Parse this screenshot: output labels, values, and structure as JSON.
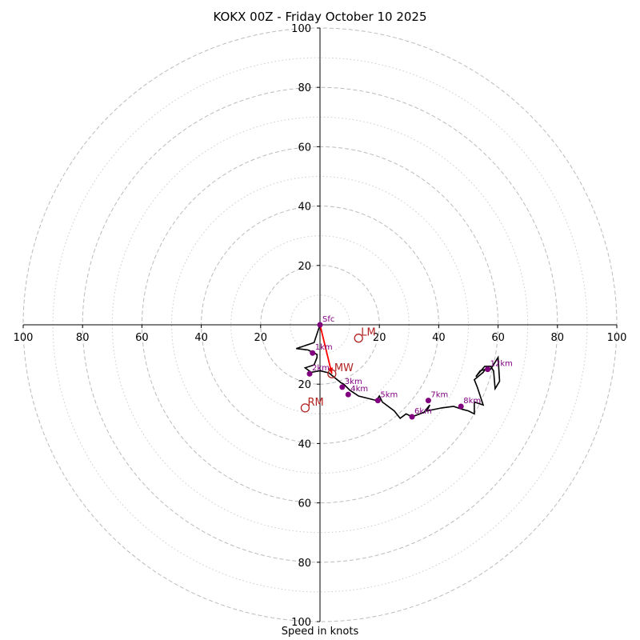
{
  "chart_data": {
    "type": "hodograph",
    "title": "KOKX 00Z - Friday October 10 2025",
    "xlabel": "Speed in knots",
    "units": "knots",
    "range": 100,
    "rings_major": [
      20,
      40,
      60,
      80,
      100
    ],
    "rings_minor": [
      10,
      30,
      50,
      70,
      90
    ],
    "tick_labels": {
      "left": [
        "100",
        "80",
        "60",
        "40",
        "20"
      ],
      "right": [
        "20",
        "40",
        "60",
        "80",
        "100"
      ],
      "up": [
        "20",
        "40",
        "60",
        "80",
        "100"
      ],
      "down": [
        "20",
        "40",
        "60",
        "80",
        "100"
      ]
    },
    "colors": {
      "trace": "#000000",
      "height_marker": "#800080",
      "motion": "#b22222",
      "mean_wind_vector": "#ff0000",
      "ring": "#bbbbbb"
    },
    "trace": [
      [
        0,
        0
      ],
      [
        -2,
        -6
      ],
      [
        -8,
        -8
      ],
      [
        -4,
        -8.5
      ],
      [
        -1,
        -10
      ],
      [
        -1,
        -11
      ],
      [
        -2,
        -13.5
      ],
      [
        -5,
        -14.5
      ],
      [
        -3,
        -16
      ],
      [
        0,
        -15.5
      ],
      [
        3,
        -16.2
      ],
      [
        7,
        -19.5
      ],
      [
        8,
        -20
      ],
      [
        10,
        -22
      ],
      [
        13,
        -24
      ],
      [
        19,
        -25.5
      ],
      [
        20,
        -24
      ],
      [
        21,
        -26
      ],
      [
        25,
        -29
      ],
      [
        27,
        -31.5
      ],
      [
        29,
        -30
      ],
      [
        31,
        -31
      ],
      [
        35,
        -29.5
      ],
      [
        37,
        -27
      ],
      [
        36,
        -29
      ],
      [
        41,
        -28
      ],
      [
        45,
        -27.5
      ],
      [
        48,
        -28.5
      ],
      [
        50,
        -29
      ],
      [
        52,
        -30
      ],
      [
        52,
        -26
      ],
      [
        55,
        -27
      ],
      [
        53,
        -21
      ],
      [
        52,
        -18.5
      ],
      [
        55,
        -16
      ],
      [
        56,
        -14.5
      ],
      [
        57.5,
        -15
      ],
      [
        60,
        -11
      ],
      [
        60.5,
        -19
      ],
      [
        59,
        -21.5
      ],
      [
        58.5,
        -15.5
      ],
      [
        57.5,
        -14
      ],
      [
        55.5,
        -14
      ],
      [
        52.5,
        -17.5
      ],
      [
        54,
        -15.5
      ],
      [
        56.5,
        -14.8
      ]
    ],
    "height_markers": [
      {
        "label": "Sfc",
        "u": 0,
        "v": 0
      },
      {
        "label": "1km",
        "u": -2.5,
        "v": -9.5
      },
      {
        "label": "2km",
        "u": -3.5,
        "v": -16.5
      },
      {
        "label": "3km",
        "u": 7.5,
        "v": -21
      },
      {
        "label": "4km",
        "u": 9.5,
        "v": -23.5
      },
      {
        "label": "5km",
        "u": 19.5,
        "v": -25.5
      },
      {
        "label": "6km",
        "u": 31,
        "v": -31
      },
      {
        "label": "7km",
        "u": 36.5,
        "v": -25.5
      },
      {
        "label": "8km",
        "u": 47.5,
        "v": -27.5
      },
      {
        "label": "12km",
        "u": 56.5,
        "v": -15
      }
    ],
    "storm_motions": [
      {
        "label": "LM",
        "u": 13,
        "v": -4.5
      },
      {
        "label": "MW",
        "u": 4,
        "v": -16.5
      },
      {
        "label": "RM",
        "u": -5,
        "v": -28
      }
    ],
    "mean_wind_vector": {
      "from": [
        0,
        0
      ],
      "to": [
        4,
        -16.5
      ]
    }
  }
}
